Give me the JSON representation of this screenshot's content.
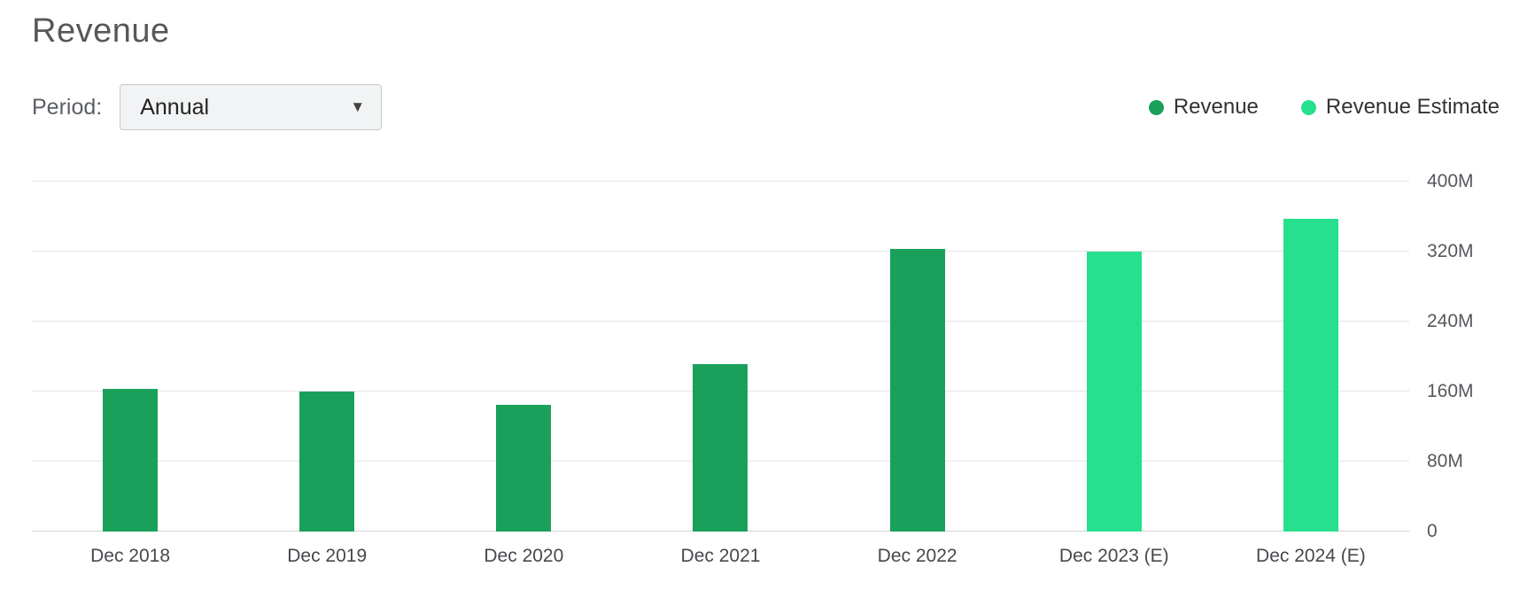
{
  "page": {
    "title": "Revenue"
  },
  "controls": {
    "period_label": "Period:",
    "period_value": "Annual",
    "dropdown_arrow": "▼"
  },
  "legend": [
    {
      "label": "Revenue",
      "color": "#1aa05a"
    },
    {
      "label": "Revenue Estimate",
      "color": "#27e08e"
    }
  ],
  "chart_data": {
    "type": "bar",
    "title": "Revenue",
    "categories": [
      "Dec 2018",
      "Dec 2019",
      "Dec 2020",
      "Dec 2021",
      "Dec 2022",
      "Dec 2023 (E)",
      "Dec 2024 (E)"
    ],
    "series": [
      {
        "name": "Revenue",
        "color": "#1aa05a",
        "values": [
          163,
          160,
          145,
          191,
          323,
          null,
          null
        ]
      },
      {
        "name": "Revenue Estimate",
        "color": "#27e08e",
        "values": [
          null,
          null,
          null,
          null,
          null,
          320,
          357
        ]
      }
    ],
    "values_unit": "M",
    "ylim": [
      0,
      400
    ],
    "yticks": [
      0,
      80,
      160,
      240,
      320,
      400
    ],
    "ytick_labels": [
      "0",
      "80M",
      "160M",
      "240M",
      "320M",
      "400M"
    ],
    "xlabel": "",
    "ylabel": "",
    "grid": true,
    "legend_position": "top-right"
  }
}
